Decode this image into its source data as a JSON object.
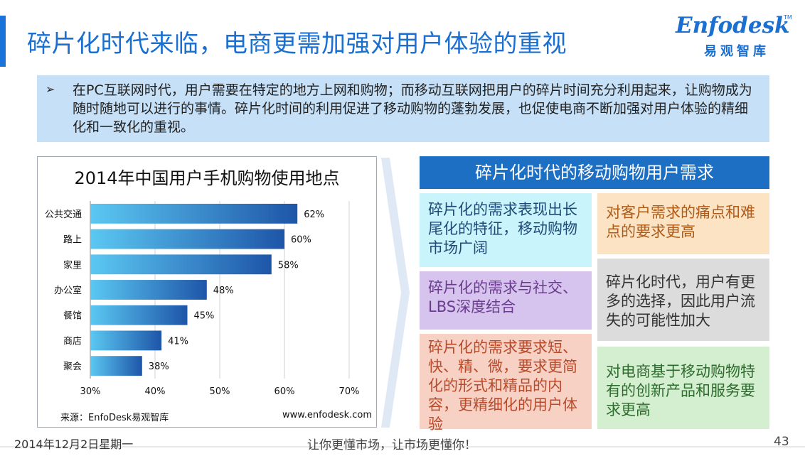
{
  "slide": {
    "title": "碎片化时代来临，电商更需加强对用户体验的重视",
    "logo": {
      "name": "Enfodesk",
      "tm": "TM",
      "cn": "易观智库"
    },
    "intro": {
      "bullet": "➢",
      "text": "在PC互联网时代，用户需要在特定的地方上网和购物；而移动互联网把用户的碎片时间充分利用起来，让购物成为随时随地可以进行的事情。碎片化时间的利用促进了移动购物的蓬勃发展，也促使电商不断加强对用户体验的精细化和一致化的重视。"
    },
    "right": {
      "header": "碎片化时代的移动购物用户需求",
      "cards": [
        "碎片化的需求表现出长尾化的特征，移动购物市场广阔",
        "碎片化的需求与社交、LBS深度结合",
        "碎片化的需求要求短、快、精、微，要求更简化的形式和精品的内容，更精细化的用户体验",
        "对客户需求的痛点和难点的要求更高",
        "碎片化时代，用户有更多的选择，因此用户流失的可能性加大",
        "对电商基于移动购物特有的创新产品和服务要求更高"
      ]
    },
    "footer": {
      "date": "2014年12月2日星期一",
      "slogan": "让你更懂市场，让市场更懂你！",
      "page": "43"
    },
    "colors": {
      "accent": "#1a6fd0",
      "bar_light": "#5bc8f2",
      "bar_dark": "#1e55a8"
    }
  },
  "chart_data": {
    "type": "bar",
    "orientation": "horizontal",
    "title": "2014年中国用户手机购物使用地点",
    "categories": [
      "公共交通",
      "路上",
      "家里",
      "办公室",
      "餐馆",
      "商店",
      "聚会"
    ],
    "values": [
      62,
      60,
      58,
      48,
      45,
      41,
      38
    ],
    "value_labels": [
      "62%",
      "60%",
      "58%",
      "48%",
      "45%",
      "41%",
      "38%"
    ],
    "xlim": [
      30,
      70
    ],
    "xticks": [
      "30%",
      "40%",
      "50%",
      "60%",
      "70%"
    ],
    "xtick_values": [
      30,
      40,
      50,
      60,
      70
    ],
    "grid": true,
    "source": "来源：EnfoDesk易观智库",
    "url": "www.enfodesk.com"
  }
}
